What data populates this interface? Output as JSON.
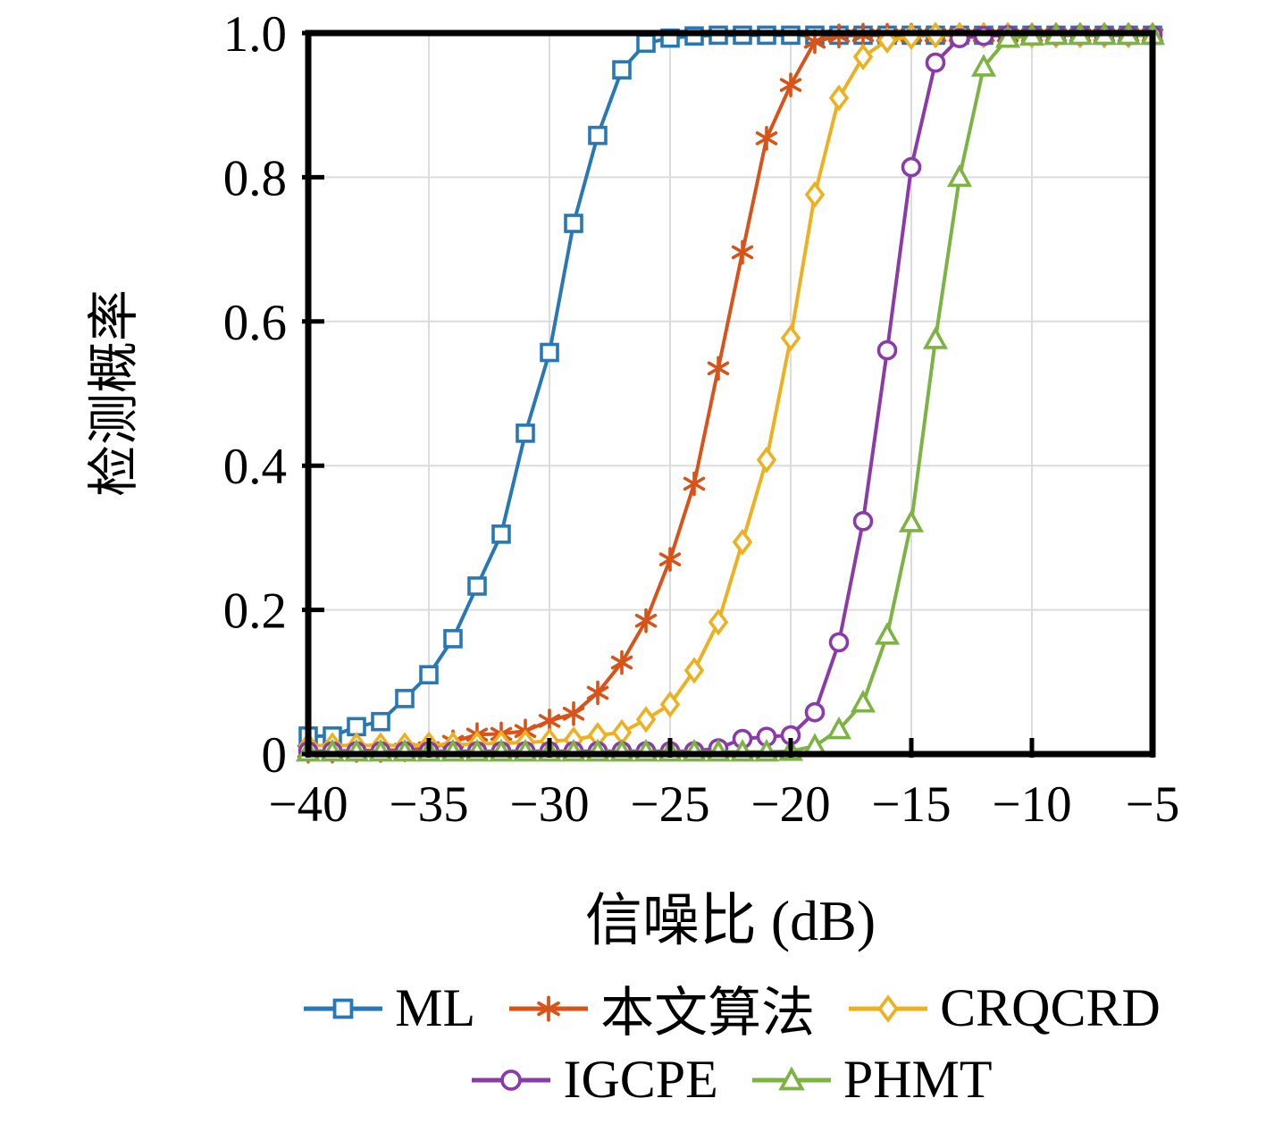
{
  "figure": {
    "background": "#ffffff",
    "axis_color": "#000000",
    "grid_color": "#dcdcdc"
  },
  "chart_data": {
    "type": "line",
    "title": "",
    "xlabel": "信噪比 (dB)",
    "ylabel": "检测概率",
    "xlim": [
      -40,
      -5
    ],
    "ylim": [
      0,
      1
    ],
    "grid": true,
    "legend_position": "bottom",
    "legend_rows": [
      [
        "ML",
        "本文算法",
        "CRQCRD"
      ],
      [
        "IGCPE",
        "PHMT"
      ]
    ],
    "x_ticks": [
      -40,
      -35,
      -30,
      -25,
      -20,
      -15,
      -10,
      -5
    ],
    "x_tick_labels": [
      "−40",
      "−35",
      "−30",
      "−25",
      "−20",
      "−15",
      "−10",
      "−5"
    ],
    "y_ticks": [
      0,
      0.2,
      0.4,
      0.6,
      0.8,
      1
    ],
    "y_tick_labels": [
      "0",
      "0.2",
      "0.4",
      "0.6",
      "0.8",
      "1.0"
    ],
    "x": [
      -40,
      -39,
      -38,
      -37,
      -36,
      -35,
      -34,
      -33,
      -32,
      -31,
      -30,
      -29,
      -28,
      -27,
      -26,
      -25,
      -24,
      -23,
      -22,
      -21,
      -20,
      -19,
      -18,
      -17,
      -16,
      -15,
      -14,
      -13,
      -12,
      -11,
      -10,
      -9,
      -8,
      -7,
      -6,
      -5
    ],
    "series": [
      {
        "name": "ML",
        "color": "#2878B5",
        "marker": "square",
        "values": [
          0.025,
          0.025,
          0.038,
          0.045,
          0.077,
          0.11,
          0.16,
          0.233,
          0.305,
          0.445,
          0.557,
          0.736,
          0.858,
          0.949,
          0.986,
          0.993,
          0.996,
          0.997,
          0.997,
          0.997,
          0.997,
          0.997,
          0.997,
          0.997,
          0.997,
          0.997,
          0.997,
          0.997,
          0.997,
          0.997,
          0.997,
          0.997,
          0.997,
          0.997,
          0.997,
          0.997
        ]
      },
      {
        "name": "本文算法",
        "color": "#D95319",
        "marker": "asterisk",
        "values": [
          0.004,
          0.004,
          0.005,
          0.005,
          0.006,
          0.008,
          0.017,
          0.027,
          0.028,
          0.032,
          0.046,
          0.056,
          0.085,
          0.127,
          0.185,
          0.27,
          0.375,
          0.535,
          0.696,
          0.854,
          0.928,
          0.988,
          0.996,
          0.997,
          0.997,
          0.997,
          0.997,
          0.997,
          0.997,
          0.997,
          0.997,
          0.997,
          0.997,
          0.997,
          0.997,
          0.997
        ]
      },
      {
        "name": "CRQCRD",
        "color": "#EDB120",
        "marker": "diamond",
        "values": [
          0.012,
          0.012,
          0.012,
          0.012,
          0.012,
          0.013,
          0.013,
          0.014,
          0.015,
          0.016,
          0.018,
          0.02,
          0.026,
          0.03,
          0.048,
          0.069,
          0.116,
          0.183,
          0.294,
          0.408,
          0.577,
          0.776,
          0.91,
          0.967,
          0.99,
          0.995,
          0.997,
          0.997,
          0.997,
          0.997,
          0.997,
          0.997,
          0.997,
          0.997,
          0.997,
          0.997
        ]
      },
      {
        "name": "IGCPE",
        "color": "#8A3BA8",
        "marker": "circle",
        "values": [
          0.004,
          0.004,
          0.004,
          0.004,
          0.004,
          0.004,
          0.004,
          0.004,
          0.004,
          0.004,
          0.004,
          0.004,
          0.004,
          0.004,
          0.004,
          0.004,
          0.004,
          0.008,
          0.021,
          0.024,
          0.026,
          0.058,
          0.155,
          0.323,
          0.56,
          0.814,
          0.959,
          0.993,
          0.996,
          0.997,
          0.997,
          0.997,
          0.997,
          0.997,
          0.997,
          0.997
        ]
      },
      {
        "name": "PHMT",
        "color": "#7CB342",
        "marker": "triangle",
        "values": [
          0.003,
          0.003,
          0.003,
          0.003,
          0.003,
          0.003,
          0.003,
          0.003,
          0.003,
          0.003,
          0.003,
          0.003,
          0.003,
          0.003,
          0.003,
          0.003,
          0.003,
          0.003,
          0.003,
          0.003,
          0.004,
          0.011,
          0.034,
          0.071,
          0.165,
          0.321,
          0.575,
          0.8,
          0.953,
          0.993,
          0.996,
          0.997,
          0.997,
          0.997,
          0.997,
          0.997
        ]
      }
    ]
  }
}
